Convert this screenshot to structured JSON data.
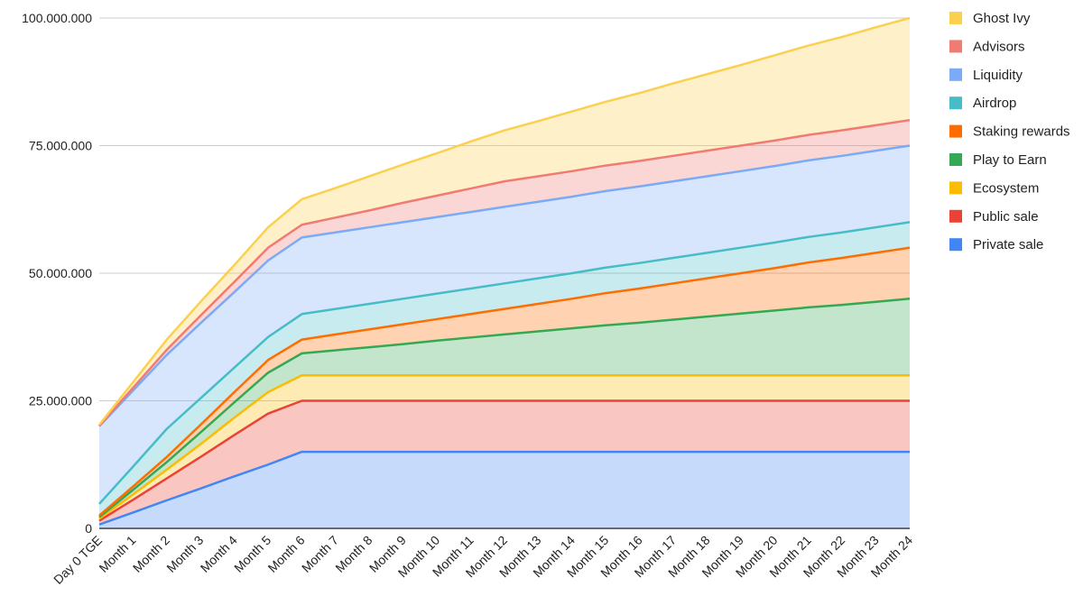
{
  "chart_data": {
    "type": "area",
    "stacked": true,
    "title": "",
    "xlabel": "",
    "ylabel": "",
    "ylim": [
      0,
      100000000
    ],
    "yticks": [
      "0",
      "25.000.000",
      "50.000.000",
      "75.000.000",
      "100.000.000"
    ],
    "ytick_values": [
      0,
      25000000,
      50000000,
      75000000,
      100000000
    ],
    "grid": true,
    "legend_position": "right",
    "categories": [
      "Day 0 TGE",
      "Month 1",
      "Month 2",
      "Month 3",
      "Month 4",
      "Month 5",
      "Month 6",
      "Month 7",
      "Month 8",
      "Month 9",
      "Month 10",
      "Month 11",
      "Month 12",
      "Month 13",
      "Month 14",
      "Month 15",
      "Month 16",
      "Month 17",
      "Month 18",
      "Month 19",
      "Month 20",
      "Month 21",
      "Month 22",
      "Month 23",
      "Month 24"
    ],
    "series": [
      {
        "name": "Private sale",
        "color": "#4285f4",
        "values": [
          750000,
          3100000,
          5500000,
          7800000,
          10200000,
          12500000,
          15000000,
          15000000,
          15000000,
          15000000,
          15000000,
          15000000,
          15000000,
          15000000,
          15000000,
          15000000,
          15000000,
          15000000,
          15000000,
          15000000,
          15000000,
          15000000,
          15000000,
          15000000,
          15000000
        ]
      },
      {
        "name": "Public sale",
        "color": "#ea4335",
        "values": [
          750000,
          2500000,
          4300000,
          6200000,
          8100000,
          10000000,
          10000000,
          10000000,
          10000000,
          10000000,
          10000000,
          10000000,
          10000000,
          10000000,
          10000000,
          10000000,
          10000000,
          10000000,
          10000000,
          10000000,
          10000000,
          10000000,
          10000000,
          10000000,
          10000000
        ]
      },
      {
        "name": "Ecosystem",
        "color": "#fbbc04",
        "values": [
          400000,
          1050000,
          1700000,
          2500000,
          3400000,
          4200000,
          5000000,
          5000000,
          5000000,
          5000000,
          5000000,
          5000000,
          5000000,
          5000000,
          5000000,
          5000000,
          5000000,
          5000000,
          5000000,
          5000000,
          5000000,
          5000000,
          5000000,
          5000000,
          5000000
        ]
      },
      {
        "name": "Play to Earn",
        "color": "#34a853",
        "values": [
          300000,
          900000,
          1500000,
          2300000,
          3000000,
          3800000,
          4300000,
          4900000,
          5500000,
          6100000,
          6800000,
          7400000,
          8000000,
          8600000,
          9200000,
          9800000,
          10300000,
          10900000,
          11500000,
          12100000,
          12700000,
          13300000,
          13800000,
          14400000,
          15000000
        ]
      },
      {
        "name": "Staking rewards",
        "color": "#ff6d01",
        "values": [
          300000,
          650000,
          1000000,
          1500000,
          2000000,
          2500000,
          2700000,
          3100000,
          3500000,
          3900000,
          4200000,
          4600000,
          5000000,
          5400000,
          5800000,
          6300000,
          6700000,
          7100000,
          7500000,
          7900000,
          8300000,
          8800000,
          9200000,
          9600000,
          10000000
        ]
      },
      {
        "name": "Airdrop",
        "color": "#46bdc6",
        "values": [
          2300000,
          3900000,
          5500000,
          5200000,
          4800000,
          4500000,
          5000000,
          5000000,
          5000000,
          5000000,
          5000000,
          5000000,
          5000000,
          5000000,
          5000000,
          5000000,
          5000000,
          5000000,
          5000000,
          5000000,
          5000000,
          5000000,
          5000000,
          5000000,
          5000000
        ]
      },
      {
        "name": "Liquidity",
        "color": "#7baaf7",
        "values": [
          15200000,
          14900000,
          14500000,
          14700000,
          14800000,
          15000000,
          15000000,
          15000000,
          15000000,
          15000000,
          15000000,
          15000000,
          15000000,
          15000000,
          15000000,
          15000000,
          15000000,
          15000000,
          15000000,
          15000000,
          15000000,
          15000000,
          15000000,
          15000000,
          15000000
        ]
      },
      {
        "name": "Advisors",
        "color": "#f07b72",
        "values": [
          100000,
          550000,
          1000000,
          1500000,
          2000000,
          2500000,
          2500000,
          2900000,
          3300000,
          3800000,
          4200000,
          4600000,
          5000000,
          5000000,
          5000000,
          5000000,
          5000000,
          5000000,
          5000000,
          5000000,
          5000000,
          5000000,
          5000000,
          5000000,
          5000000
        ]
      },
      {
        "name": "Ghost Ivy",
        "color": "#fcd04f",
        "values": [
          200000,
          1100000,
          2000000,
          2700000,
          3300000,
          4000000,
          5000000,
          5800000,
          6700000,
          7500000,
          8300000,
          9200000,
          10000000,
          10800000,
          11700000,
          12500000,
          13300000,
          14200000,
          15000000,
          15800000,
          16700000,
          17500000,
          18300000,
          19200000,
          20000000
        ]
      }
    ]
  }
}
